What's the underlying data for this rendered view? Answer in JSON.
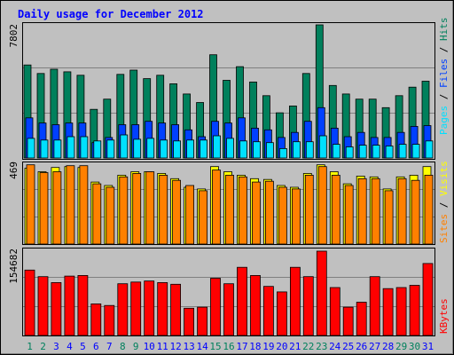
{
  "title": "Daily usage for December 2012",
  "colors": {
    "background": "#c0c0c0",
    "title": "#0000ff",
    "hits": "#00805c",
    "files": "#0040ff",
    "pages": "#00e0ff",
    "visits": "#ffff00",
    "sites": "#ff8000",
    "kbytes": "#ff0000",
    "weekend_label": "#00805c",
    "weekday_label": "#0000ff",
    "gridline": "#808080"
  },
  "chart_data": [
    {
      "type": "bar",
      "panel": "hits-files-pages",
      "ymax_label": "7802",
      "ylim": [
        0,
        7802
      ],
      "legend": {
        "pages": "Pages",
        "files": "Files",
        "hits": "Hits",
        "separator": " / "
      },
      "categories": [
        "1",
        "2",
        "3",
        "4",
        "5",
        "6",
        "7",
        "8",
        "9",
        "10",
        "11",
        "12",
        "13",
        "14",
        "15",
        "16",
        "17",
        "18",
        "19",
        "20",
        "21",
        "22",
        "23",
        "24",
        "25",
        "26",
        "27",
        "28",
        "29",
        "30",
        "31"
      ],
      "series": [
        {
          "name": "Hits",
          "values": [
            5450,
            4950,
            5200,
            5050,
            4850,
            2850,
            3450,
            4900,
            5150,
            4650,
            4850,
            4350,
            3750,
            3250,
            6050,
            4550,
            5350,
            4450,
            3650,
            2650,
            3050,
            4950,
            7802,
            4250,
            3750,
            3450,
            3450,
            2950,
            3650,
            4150,
            4500
          ]
        },
        {
          "name": "Files",
          "values": [
            2350,
            2050,
            1950,
            2050,
            2050,
            900,
            1200,
            1950,
            1950,
            2150,
            2050,
            1950,
            1650,
            1250,
            2150,
            2050,
            2350,
            1750,
            1650,
            1200,
            1500,
            2150,
            2950,
            1750,
            1250,
            1500,
            1200,
            1200,
            1500,
            1850,
            1900
          ]
        },
        {
          "name": "Pages",
          "values": [
            1150,
            1050,
            1050,
            1250,
            1250,
            1000,
            1050,
            1350,
            1100,
            1150,
            1050,
            1000,
            1050,
            1050,
            1300,
            1150,
            1000,
            950,
            900,
            550,
            950,
            950,
            1300,
            800,
            650,
            750,
            750,
            700,
            800,
            800,
            1000
          ]
        }
      ]
    },
    {
      "type": "bar",
      "panel": "visits-sites",
      "ymax_label": "469",
      "ylim": [
        0,
        469
      ],
      "legend": {
        "sites": "Sites",
        "visits": "Visits",
        "separator": " / "
      },
      "series": [
        {
          "name": "Visits",
          "values": [
            440,
            420,
            445,
            450,
            445,
            360,
            340,
            400,
            420,
            420,
            410,
            380,
            330,
            320,
            450,
            420,
            400,
            380,
            375,
            340,
            330,
            410,
            460,
            420,
            350,
            395,
            390,
            320,
            390,
            400,
            450
          ]
        },
        {
          "name": "Sites",
          "values": [
            460,
            415,
            420,
            455,
            455,
            350,
            330,
            390,
            410,
            420,
            400,
            370,
            340,
            310,
            430,
            400,
            390,
            360,
            365,
            330,
            320,
            400,
            450,
            400,
            340,
            380,
            380,
            310,
            380,
            370,
            400
          ]
        }
      ]
    },
    {
      "type": "bar",
      "panel": "kbytes",
      "ymax_label": "154682",
      "ylim": [
        0,
        154682
      ],
      "legend": {
        "kbytes": "KBytes"
      },
      "series": [
        {
          "name": "KBytes",
          "values": [
            120000,
            108000,
            97000,
            109000,
            110000,
            58000,
            55000,
            95000,
            98000,
            100000,
            97000,
            94000,
            50000,
            52000,
            105000,
            95000,
            125000,
            110000,
            90000,
            80000,
            125000,
            108000,
            154682,
            88000,
            52000,
            61000,
            108000,
            86000,
            88000,
            92000,
            132000
          ]
        }
      ]
    }
  ]
}
